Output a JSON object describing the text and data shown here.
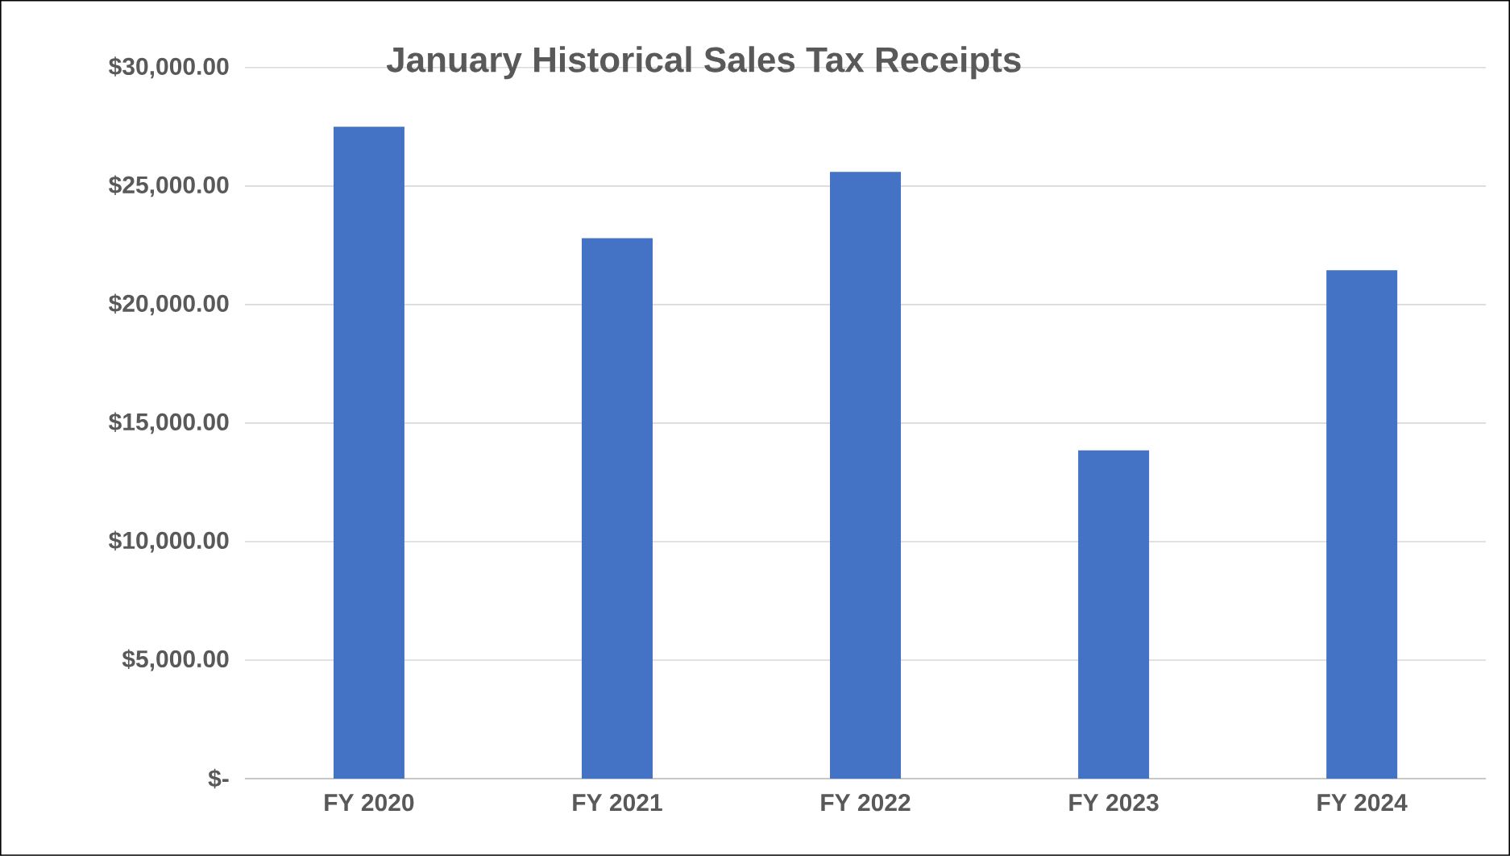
{
  "chart_data": {
    "type": "bar",
    "title": "January  Historical Sales Tax Receipts",
    "categories": [
      "FY 2020",
      "FY 2021",
      "FY 2022",
      "FY 2023",
      "FY 2024"
    ],
    "values": [
      27500,
      22800,
      25600,
      13850,
      21450
    ],
    "color": "#4472c4",
    "ylim": [
      0,
      30000
    ],
    "yticks": [
      {
        "value": 0,
        "label": "$-"
      },
      {
        "value": 5000,
        "label": "$5,000.00"
      },
      {
        "value": 10000,
        "label": "$10,000.00"
      },
      {
        "value": 15000,
        "label": "$15,000.00"
      },
      {
        "value": 20000,
        "label": "$20,000.00"
      },
      {
        "value": 25000,
        "label": "$25,000.00"
      },
      {
        "value": 30000,
        "label": "$30,000.00"
      }
    ],
    "grid": "y"
  }
}
